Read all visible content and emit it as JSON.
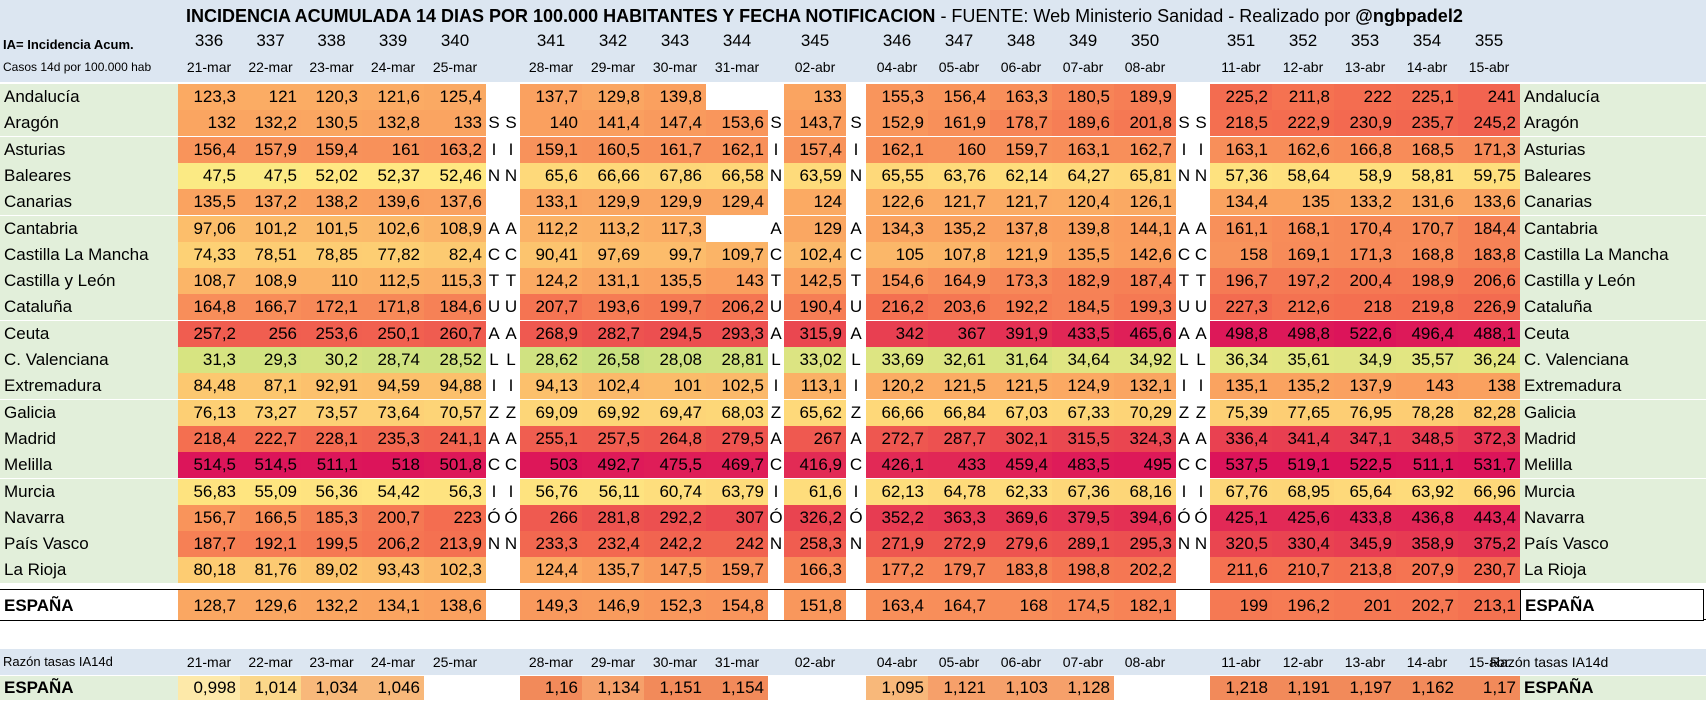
{
  "title_main": "INCIDENCIA ACUMULADA 14 DIAS POR 100.000 HABITANTES Y FECHA NOTIFICACION",
  "title_rest": " - FUENTE: Web Ministerio Sanidad - Realizado por ",
  "title_author": "@ngbpadel2",
  "legend_line1": "IA= Incidencia Acum.",
  "legend_line2": "Casos 14d  por 100.000 hab",
  "col_days": [
    "336",
    "337",
    "338",
    "339",
    "340",
    "",
    "",
    "341",
    "342",
    "343",
    "344",
    "",
    "345",
    "",
    "346",
    "347",
    "348",
    "349",
    "350",
    "",
    "",
    "351",
    "352",
    "353",
    "354",
    "355"
  ],
  "col_dates": [
    "21-mar",
    "22-mar",
    "23-mar",
    "24-mar",
    "25-mar",
    "",
    "",
    "28-mar",
    "29-mar",
    "30-mar",
    "31-mar",
    "",
    "02-abr",
    "",
    "04-abr",
    "05-abr",
    "06-abr",
    "07-abr",
    "08-abr",
    "",
    "",
    "11-abr",
    "12-abr",
    "13-abr",
    "14-abr",
    "15-abr"
  ],
  "rows": [
    {
      "name": "Andalucía",
      "v": [
        "123,3",
        "121",
        "120,3",
        "121,6",
        "125,4",
        "",
        "",
        "137,7",
        "129,8",
        "139,8",
        "",
        "",
        "133",
        "",
        "155,3",
        "156,4",
        "163,3",
        "180,5",
        "189,9",
        "",
        "",
        "225,2",
        "211,8",
        "222",
        "225,1",
        "241"
      ]
    },
    {
      "name": "Aragón",
      "v": [
        "132",
        "132,2",
        "130,5",
        "132,8",
        "133",
        "S",
        "S",
        "140",
        "141,4",
        "147,4",
        "153,6",
        "S",
        "143,7",
        "S",
        "152,9",
        "161,9",
        "178,7",
        "189,6",
        "201,8",
        "S",
        "S",
        "218,5",
        "222,9",
        "230,9",
        "235,7",
        "245,2"
      ]
    },
    {
      "name": "Asturias",
      "v": [
        "156,4",
        "157,9",
        "159,4",
        "161",
        "163,2",
        "I",
        "I",
        "159,1",
        "160,5",
        "161,7",
        "162,1",
        "I",
        "157,4",
        "I",
        "162,1",
        "160",
        "159,7",
        "163,1",
        "162,7",
        "I",
        "I",
        "163,1",
        "162,6",
        "166,8",
        "168,5",
        "171,3"
      ]
    },
    {
      "name": "Baleares",
      "v": [
        "47,5",
        "47,5",
        "52,02",
        "52,37",
        "52,46",
        "N",
        "N",
        "65,6",
        "66,66",
        "67,86",
        "66,58",
        "N",
        "63,59",
        "N",
        "65,55",
        "63,76",
        "62,14",
        "64,27",
        "65,81",
        "N",
        "N",
        "57,36",
        "58,64",
        "58,9",
        "58,81",
        "59,75"
      ]
    },
    {
      "name": "Canarias",
      "v": [
        "135,5",
        "137,2",
        "138,2",
        "139,6",
        "137,6",
        "",
        "",
        "133,1",
        "129,9",
        "129,9",
        "129,4",
        "",
        "124",
        "",
        "122,6",
        "121,7",
        "121,7",
        "120,4",
        "126,1",
        "",
        "",
        "134,4",
        "135",
        "133,2",
        "131,6",
        "133,6"
      ]
    },
    {
      "name": "Cantabria",
      "v": [
        "97,06",
        "101,2",
        "101,5",
        "102,6",
        "108,9",
        "A",
        "A",
        "112,2",
        "113,2",
        "117,3",
        "",
        "A",
        "129",
        "A",
        "134,3",
        "135,2",
        "137,8",
        "139,8",
        "144,1",
        "A",
        "A",
        "161,1",
        "168,1",
        "170,4",
        "170,7",
        "184,4"
      ]
    },
    {
      "name": "Castilla La Mancha",
      "v": [
        "74,33",
        "78,51",
        "78,85",
        "77,82",
        "82,4",
        "C",
        "C",
        "90,41",
        "97,69",
        "99,7",
        "109,7",
        "C",
        "102,4",
        "C",
        "105",
        "107,8",
        "121,9",
        "135,5",
        "142,6",
        "C",
        "C",
        "158",
        "169,1",
        "171,3",
        "168,8",
        "183,8"
      ]
    },
    {
      "name": "Castilla y León",
      "v": [
        "108,7",
        "108,9",
        "110",
        "112,5",
        "115,3",
        "T",
        "T",
        "124,2",
        "131,1",
        "135,5",
        "143",
        "T",
        "142,5",
        "T",
        "154,6",
        "164,9",
        "173,3",
        "182,9",
        "187,4",
        "T",
        "T",
        "196,7",
        "197,2",
        "200,4",
        "198,9",
        "206,6"
      ]
    },
    {
      "name": "Cataluña",
      "v": [
        "164,8",
        "166,7",
        "172,1",
        "171,8",
        "184,6",
        "U",
        "U",
        "207,7",
        "193,6",
        "199,7",
        "206,2",
        "U",
        "190,4",
        "U",
        "216,2",
        "203,6",
        "192,2",
        "184,5",
        "199,3",
        "U",
        "U",
        "227,3",
        "212,6",
        "218",
        "219,8",
        "226,9"
      ]
    },
    {
      "name": "Ceuta",
      "v": [
        "257,2",
        "256",
        "253,6",
        "250,1",
        "260,7",
        "A",
        "A",
        "268,9",
        "282,7",
        "294,5",
        "293,3",
        "A",
        "315,9",
        "A",
        "342",
        "367",
        "391,9",
        "433,5",
        "465,6",
        "A",
        "A",
        "498,8",
        "498,8",
        "522,6",
        "496,4",
        "488,1"
      ]
    },
    {
      "name": "C. Valenciana",
      "v": [
        "31,3",
        "29,3",
        "30,2",
        "28,74",
        "28,52",
        "L",
        "L",
        "28,62",
        "26,58",
        "28,08",
        "28,81",
        "L",
        "33,02",
        "L",
        "33,69",
        "32,61",
        "31,64",
        "34,64",
        "34,92",
        "L",
        "L",
        "36,34",
        "35,61",
        "34,9",
        "35,57",
        "36,24"
      ]
    },
    {
      "name": "Extremadura",
      "v": [
        "84,48",
        "87,1",
        "92,91",
        "94,59",
        "94,88",
        "I",
        "I",
        "94,13",
        "102,4",
        "101",
        "102,5",
        "I",
        "113,1",
        "I",
        "120,2",
        "121,5",
        "121,5",
        "124,9",
        "132,1",
        "I",
        "I",
        "135,1",
        "135,2",
        "137,9",
        "143",
        "138"
      ]
    },
    {
      "name": "Galicia",
      "v": [
        "76,13",
        "73,27",
        "73,57",
        "73,64",
        "70,57",
        "Z",
        "Z",
        "69,09",
        "69,92",
        "69,47",
        "68,03",
        "Z",
        "65,62",
        "Z",
        "66,66",
        "66,84",
        "67,03",
        "67,33",
        "70,29",
        "Z",
        "Z",
        "75,39",
        "77,65",
        "76,95",
        "78,28",
        "82,28"
      ]
    },
    {
      "name": "Madrid",
      "v": [
        "218,4",
        "222,7",
        "228,1",
        "235,3",
        "241,1",
        "A",
        "A",
        "255,1",
        "257,5",
        "264,8",
        "279,5",
        "A",
        "267",
        "A",
        "272,7",
        "287,7",
        "302,1",
        "315,5",
        "324,3",
        "A",
        "A",
        "336,4",
        "341,4",
        "347,1",
        "348,5",
        "372,3"
      ]
    },
    {
      "name": "Melilla",
      "v": [
        "514,5",
        "514,5",
        "511,1",
        "518",
        "501,8",
        "C",
        "C",
        "503",
        "492,7",
        "475,5",
        "469,7",
        "C",
        "416,9",
        "C",
        "426,1",
        "433",
        "459,4",
        "483,5",
        "495",
        "C",
        "C",
        "537,5",
        "519,1",
        "522,5",
        "511,1",
        "531,7"
      ]
    },
    {
      "name": "Murcia",
      "v": [
        "56,83",
        "55,09",
        "56,36",
        "54,42",
        "56,3",
        "I",
        "I",
        "56,76",
        "56,11",
        "60,74",
        "63,79",
        "I",
        "61,6",
        "I",
        "62,13",
        "64,78",
        "62,33",
        "67,36",
        "68,16",
        "I",
        "I",
        "67,76",
        "68,95",
        "65,64",
        "63,92",
        "66,96"
      ]
    },
    {
      "name": "Navarra",
      "v": [
        "156,7",
        "166,5",
        "185,3",
        "200,7",
        "223",
        "Ó",
        "Ó",
        "266",
        "281,8",
        "292,2",
        "307",
        "Ó",
        "326,2",
        "Ó",
        "352,2",
        "363,3",
        "369,6",
        "379,5",
        "394,6",
        "Ó",
        "Ó",
        "425,1",
        "425,6",
        "433,8",
        "436,8",
        "443,4"
      ]
    },
    {
      "name": "País Vasco",
      "v": [
        "187,7",
        "192,1",
        "199,5",
        "206,2",
        "213,9",
        "N",
        "N",
        "233,3",
        "232,4",
        "242,2",
        "242",
        "N",
        "258,3",
        "N",
        "271,9",
        "272,9",
        "279,6",
        "289,1",
        "295,3",
        "N",
        "N",
        "320,5",
        "330,4",
        "345,9",
        "358,9",
        "375,2"
      ]
    },
    {
      "name": "La Rioja",
      "v": [
        "80,18",
        "81,76",
        "89,02",
        "93,43",
        "102,3",
        "",
        "",
        "124,4",
        "135,7",
        "147,5",
        "159,7",
        "",
        "166,3",
        "",
        "177,2",
        "179,7",
        "183,8",
        "198,8",
        "202,2",
        "",
        "",
        "211,6",
        "210,7",
        "213,8",
        "207,9",
        "230,7"
      ]
    }
  ],
  "espana": {
    "name": "ESPAÑA",
    "v": [
      "128,7",
      "129,6",
      "132,2",
      "134,1",
      "138,6",
      "",
      "",
      "149,3",
      "146,9",
      "152,3",
      "154,8",
      "",
      "151,8",
      "",
      "163,4",
      "164,7",
      "168",
      "174,5",
      "182,1",
      "",
      "",
      "199",
      "196,2",
      "201",
      "202,7",
      "213,1"
    ]
  },
  "ratio_label": "Razón tasas IA14d",
  "ratio_dates": [
    "21-mar",
    "22-mar",
    "23-mar",
    "24-mar",
    "25-mar",
    "",
    "",
    "28-mar",
    "29-mar",
    "30-mar",
    "31-mar",
    "",
    "02-abr",
    "",
    "04-abr",
    "05-abr",
    "06-abr",
    "07-abr",
    "08-abr",
    "",
    "",
    "11-abr",
    "12-abr",
    "13-abr",
    "14-abr",
    "15-abr"
  ],
  "ratio_espana": {
    "name": "ESPAÑA",
    "v": [
      "0,998",
      "1,014",
      "1,034",
      "1,046",
      "",
      "",
      "",
      "1,16",
      "1,134",
      "1,151",
      "1,154",
      "",
      "",
      "",
      "1,095",
      "1,121",
      "1,103",
      "1,128",
      "",
      "",
      "",
      "1,218",
      "1,191",
      "1,197",
      "1,162",
      "1,17"
    ]
  },
  "colors": {
    "header_bg": "#dce6f1",
    "label_bg": "#e2efda",
    "sep_bg": "#ffffff"
  }
}
